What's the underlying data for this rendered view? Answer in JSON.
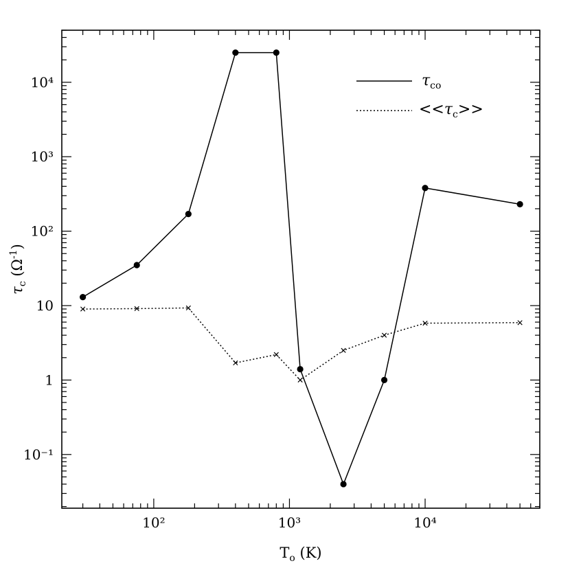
{
  "chart_data": {
    "type": "line",
    "xlabel": "Tₒ (K)",
    "ylabel": "τc (Ω⁻¹)",
    "x_scale": "log",
    "y_scale": "log",
    "xlim": [
      21,
      70000
    ],
    "ylim": [
      0.019,
      50000
    ],
    "x_ticks": [
      {
        "value": 100,
        "label": "10²"
      },
      {
        "value": 1000,
        "label": "10³"
      },
      {
        "value": 10000,
        "label": "10⁴"
      }
    ],
    "y_ticks": [
      {
        "value": 0.1,
        "label": "10⁻¹"
      },
      {
        "value": 1,
        "label": "1"
      },
      {
        "value": 10,
        "label": "10"
      },
      {
        "value": 100,
        "label": "10²"
      },
      {
        "value": 1000,
        "label": "10³"
      },
      {
        "value": 10000,
        "label": "10⁴"
      }
    ],
    "legend_position": "top-right",
    "series": [
      {
        "name": "τco",
        "style": "solid",
        "marker": "filled-circle",
        "color": "#000000",
        "x": [
          30,
          75,
          180,
          400,
          800,
          1200,
          2500,
          5000,
          10000,
          50000
        ],
        "y": [
          13,
          35,
          170,
          25000,
          25000,
          1.4,
          0.04,
          1.0,
          380,
          230
        ]
      },
      {
        "name": "<<τc>>",
        "style": "dotted",
        "marker": "x",
        "color": "#000000",
        "x": [
          30,
          75,
          180,
          400,
          800,
          1200,
          2500,
          5000,
          10000,
          50000
        ],
        "y": [
          9,
          9.1,
          9.3,
          1.7,
          2.2,
          1.0,
          2.5,
          4.0,
          5.8,
          5.9
        ]
      }
    ]
  }
}
